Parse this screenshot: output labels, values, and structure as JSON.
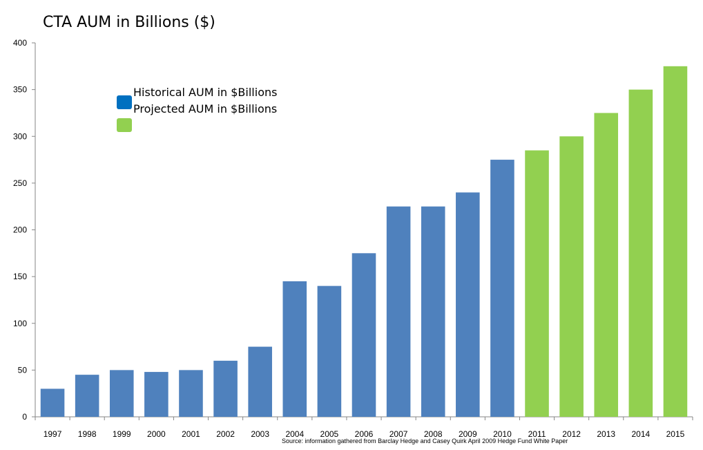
{
  "chart_data": {
    "type": "bar",
    "title": "CTA AUM in Billions ($)",
    "xlabel": "",
    "ylabel": "",
    "ylim": [
      0,
      400
    ],
    "yticks": [
      0,
      50,
      100,
      150,
      200,
      250,
      300,
      350,
      400
    ],
    "grid": false,
    "legend_position": "top-left",
    "categories": [
      "1997",
      "1998",
      "1999",
      "2000",
      "2001",
      "2002",
      "2003",
      "2004",
      "2005",
      "2006",
      "2007",
      "2008",
      "2009",
      "2010",
      "2011",
      "2012",
      "2013",
      "2014",
      "2015"
    ],
    "series": [
      {
        "name": "Historical AUM in $Billions",
        "color": "#4f81bd",
        "legend_color": "#0070c0",
        "values": [
          30,
          45,
          50,
          48,
          50,
          60,
          75,
          145,
          140,
          175,
          225,
          225,
          240,
          275,
          null,
          null,
          null,
          null,
          null
        ]
      },
      {
        "name": "Projected AUM in $Billions",
        "color": "#92d050",
        "legend_color": "#92d050",
        "values": [
          null,
          null,
          null,
          null,
          null,
          null,
          null,
          null,
          null,
          null,
          null,
          null,
          null,
          null,
          285,
          300,
          325,
          350,
          375
        ]
      }
    ],
    "source_note": "Source: information gathered from Barclay Hedge and Casey Quirk April 2009 Hedge Fund White Paper"
  }
}
